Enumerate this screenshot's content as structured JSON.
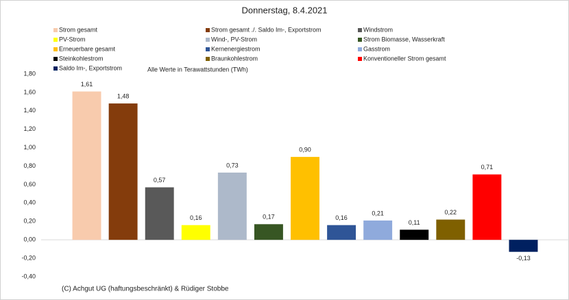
{
  "chart_data": {
    "type": "bar",
    "title": "Donnerstag, 8.4.2021",
    "annotations": [
      "Alle Werte in Terawattstunden (TWh)",
      "(C) Achgut UG (haftungsbeschränkt) & Rüdiger Stobbe"
    ],
    "categories": [
      "Strom gesamt",
      "Strom gesamt ./. Saldo Im-, Exportstrom",
      "Windstrom",
      "PV-Strom",
      "Wind-, PV-Strom",
      "Strom Biomasse, Wasserkraft",
      "Erneuerbare gesamt",
      "Kernenergiestrom",
      "Gasstrom",
      "Steinkohlestrom",
      "Braunkohlestrom",
      "Konventioneller Strom gesamt",
      "Saldo Im-, Exportstrom"
    ],
    "values": [
      1.61,
      1.48,
      0.57,
      0.16,
      0.73,
      0.17,
      0.9,
      0.16,
      0.21,
      0.11,
      0.22,
      0.71,
      -0.13
    ],
    "value_labels": [
      "1,61",
      "1,48",
      "0,57",
      "0,16",
      "0,73",
      "0,17",
      "0,90",
      "0,16",
      "0,21",
      "0,11",
      "0,22",
      "0,71",
      "-0,13"
    ],
    "colors": [
      "#f8cbad",
      "#843c0c",
      "#595959",
      "#ffff00",
      "#adb9ca",
      "#375623",
      "#ffc000",
      "#2f5597",
      "#8faadc",
      "#000000",
      "#7f6000",
      "#ff0000",
      "#002060"
    ],
    "ylim": [
      -0.4,
      1.8
    ],
    "yticks": [
      {
        "value": -0.4,
        "label": "-0,40"
      },
      {
        "value": -0.2,
        "label": "-0,20"
      },
      {
        "value": 0,
        "label": "0,00"
      },
      {
        "value": 0.2,
        "label": "0,20"
      },
      {
        "value": 0.4,
        "label": "0,40"
      },
      {
        "value": 0.6,
        "label": "0,60"
      },
      {
        "value": 0.8,
        "label": "0,80"
      },
      {
        "value": 1.0,
        "label": "1,00"
      },
      {
        "value": 1.2,
        "label": "1,20"
      },
      {
        "value": 1.4,
        "label": "1,40"
      },
      {
        "value": 1.6,
        "label": "1,60"
      },
      {
        "value": 1.8,
        "label": "1,80"
      }
    ],
    "grid": false,
    "legend": "top"
  }
}
